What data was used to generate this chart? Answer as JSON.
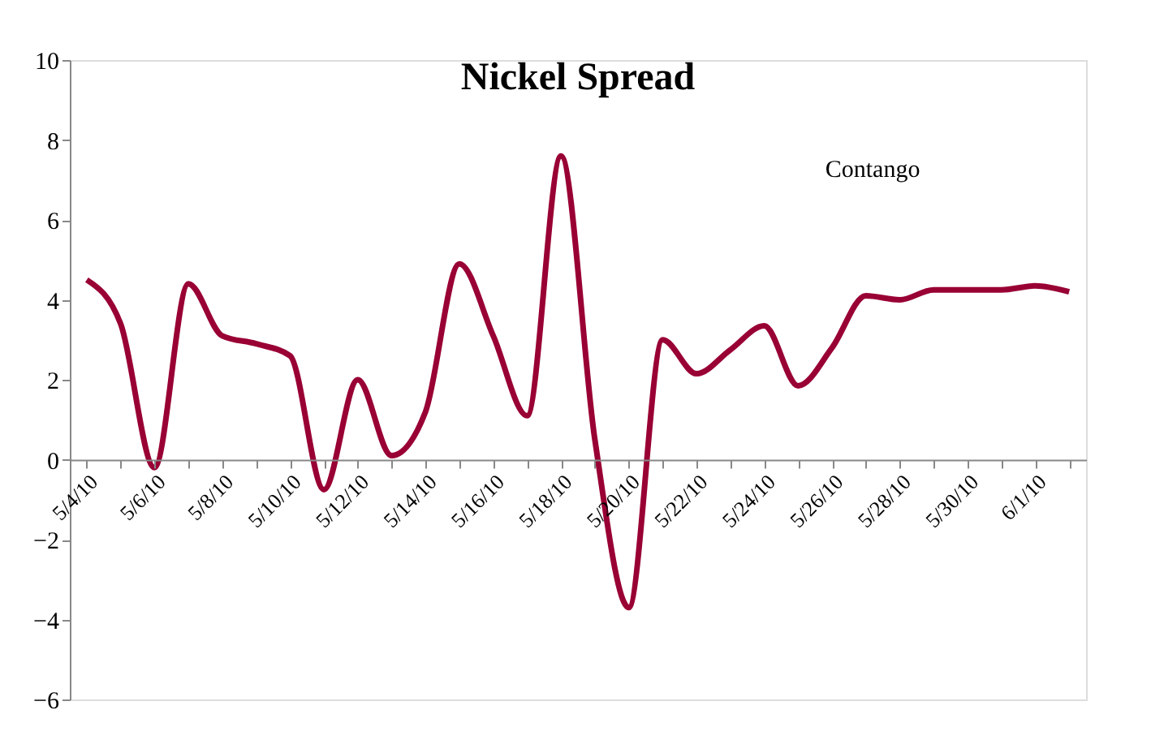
{
  "chart_data": {
    "type": "line",
    "title": "Nickel Spread",
    "annotations": [
      "Contango"
    ],
    "categories": [
      "5/4/10",
      null,
      "5/6/10",
      null,
      "5/8/10",
      null,
      "5/10/10",
      null,
      "5/12/10",
      null,
      "5/14/10",
      null,
      "5/16/10",
      null,
      "5/18/10",
      null,
      "5/20/10",
      null,
      "5/22/10",
      null,
      "5/24/10",
      null,
      "5/26/10",
      null,
      "5/28/10",
      null,
      "5/30/10",
      null,
      "6/1/10",
      null
    ],
    "series": [
      {
        "color": "#990033",
        "values": [
          4.5,
          3.4,
          -0.2,
          4.4,
          3.1,
          2.9,
          2.6,
          -0.75,
          2.0,
          0.1,
          1.2,
          4.9,
          3.1,
          1.1,
          7.6,
          0.5,
          -3.7,
          3.0,
          2.15,
          2.75,
          3.35,
          1.85,
          2.8,
          4.1,
          4.0,
          4.25,
          4.25,
          4.25,
          4.35,
          4.2
        ]
      }
    ],
    "ylim": [
      -6,
      10
    ],
    "yticks": [
      -6,
      -4,
      -2,
      0,
      2,
      4,
      6,
      8,
      10
    ],
    "grid": false,
    "legend": false,
    "marker": "none",
    "line_style": "solid"
  }
}
